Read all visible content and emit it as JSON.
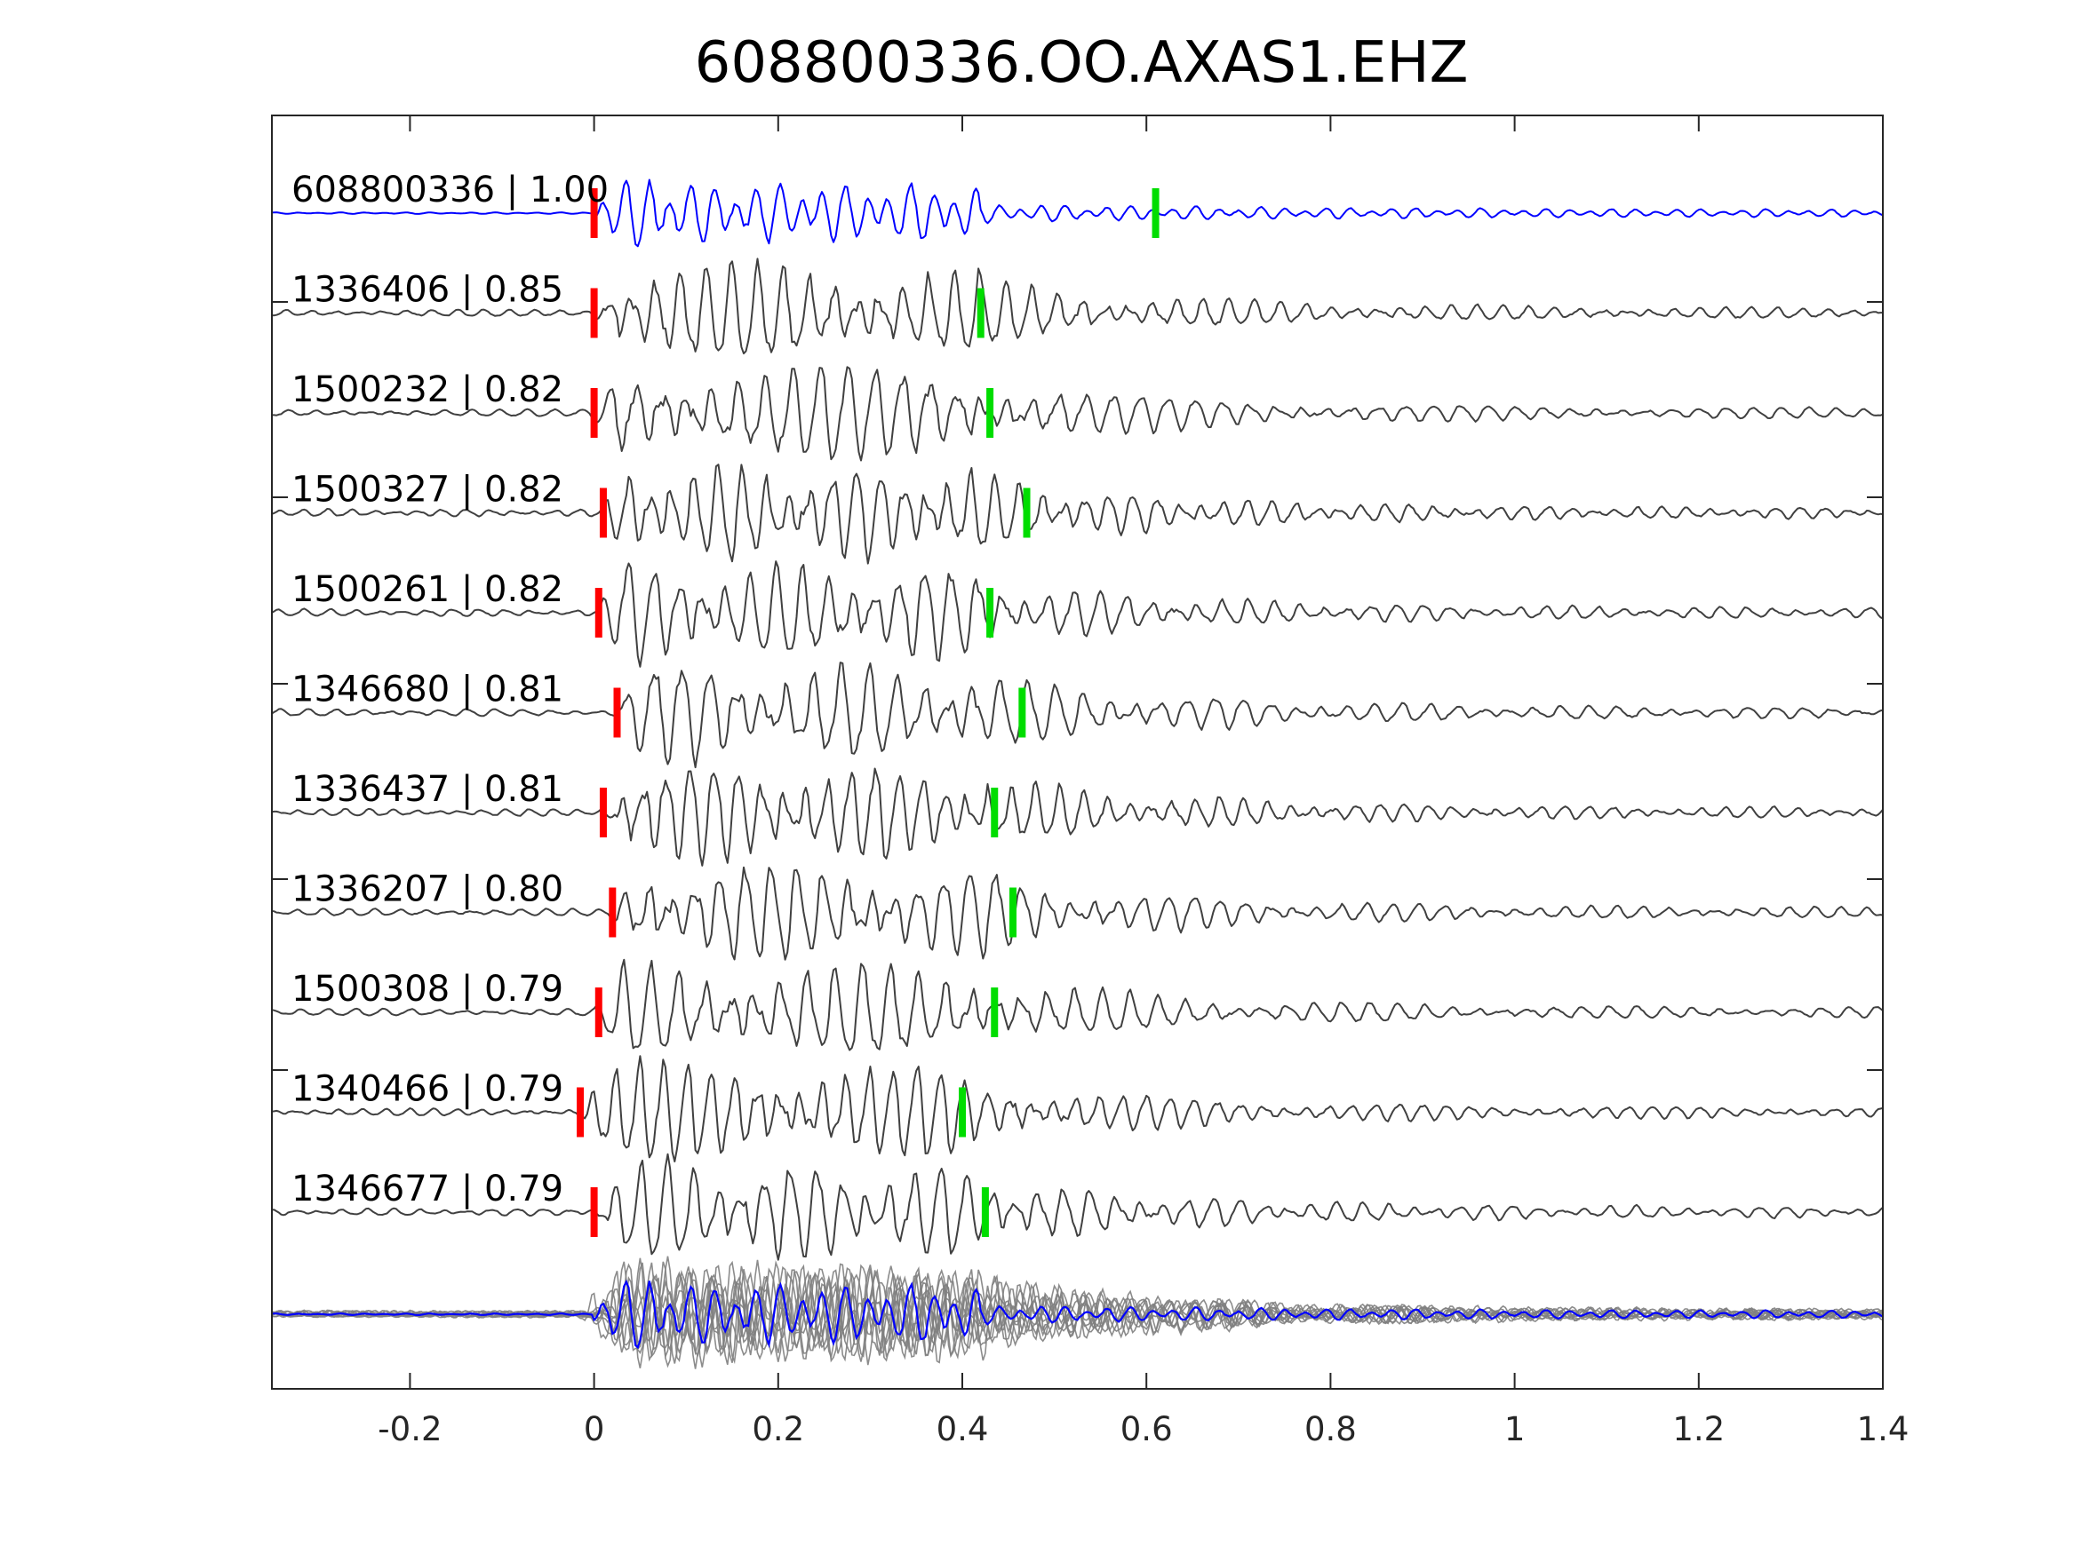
{
  "chart_data": {
    "type": "line",
    "title": "608800336.OO.AXAS1.EHZ",
    "xlabel": "",
    "ylabel": "",
    "xlim": [
      -0.35,
      1.4
    ],
    "xticks": [
      -0.2,
      0,
      0.2,
      0.4,
      0.6,
      0.8,
      1,
      1.2,
      1.4
    ],
    "xtick_labels": [
      "-0.2",
      "0",
      "0.2",
      "0.4",
      "0.6",
      "0.8",
      "1",
      "1.2",
      "1.4"
    ],
    "grid": false,
    "colors": {
      "template_trace": "#0000ff",
      "matched_trace": "#404040",
      "stack_overlay": "#808080",
      "p_pick": "#ff0000",
      "s_pick": "#00dd00",
      "axes": "#262626"
    },
    "traces": [
      {
        "label": "608800336 | 1.00",
        "id": "608800336",
        "cc": 1.0,
        "role": "template",
        "p_pick": 0.0,
        "s_pick": 0.61
      },
      {
        "label": "1336406 | 0.85",
        "id": "1336406",
        "cc": 0.85,
        "role": "match",
        "p_pick": 0.0,
        "s_pick": 0.42
      },
      {
        "label": "1500232 | 0.82",
        "id": "1500232",
        "cc": 0.82,
        "role": "match",
        "p_pick": 0.0,
        "s_pick": 0.43
      },
      {
        "label": "1500327 | 0.82",
        "id": "1500327",
        "cc": 0.82,
        "role": "match",
        "p_pick": 0.01,
        "s_pick": 0.47
      },
      {
        "label": "1500261 | 0.82",
        "id": "1500261",
        "cc": 0.82,
        "role": "match",
        "p_pick": 0.005,
        "s_pick": 0.43
      },
      {
        "label": "1346680 | 0.81",
        "id": "1346680",
        "cc": 0.81,
        "role": "match",
        "p_pick": 0.025,
        "s_pick": 0.465
      },
      {
        "label": "1336437 | 0.81",
        "id": "1336437",
        "cc": 0.81,
        "role": "match",
        "p_pick": 0.01,
        "s_pick": 0.435
      },
      {
        "label": "1336207 | 0.80",
        "id": "1336207",
        "cc": 0.8,
        "role": "match",
        "p_pick": 0.02,
        "s_pick": 0.455
      },
      {
        "label": "1500308 | 0.79",
        "id": "1500308",
        "cc": 0.79,
        "role": "match",
        "p_pick": 0.005,
        "s_pick": 0.435
      },
      {
        "label": "1340466 | 0.79",
        "id": "1340466",
        "cc": 0.79,
        "role": "match",
        "p_pick": -0.015,
        "s_pick": 0.4
      },
      {
        "label": "1346677 | 0.79",
        "id": "1346677",
        "cc": 0.79,
        "role": "match",
        "p_pick": 0.0,
        "s_pick": 0.425
      }
    ],
    "stack": {
      "role": "overlay",
      "includes_template": true
    }
  }
}
